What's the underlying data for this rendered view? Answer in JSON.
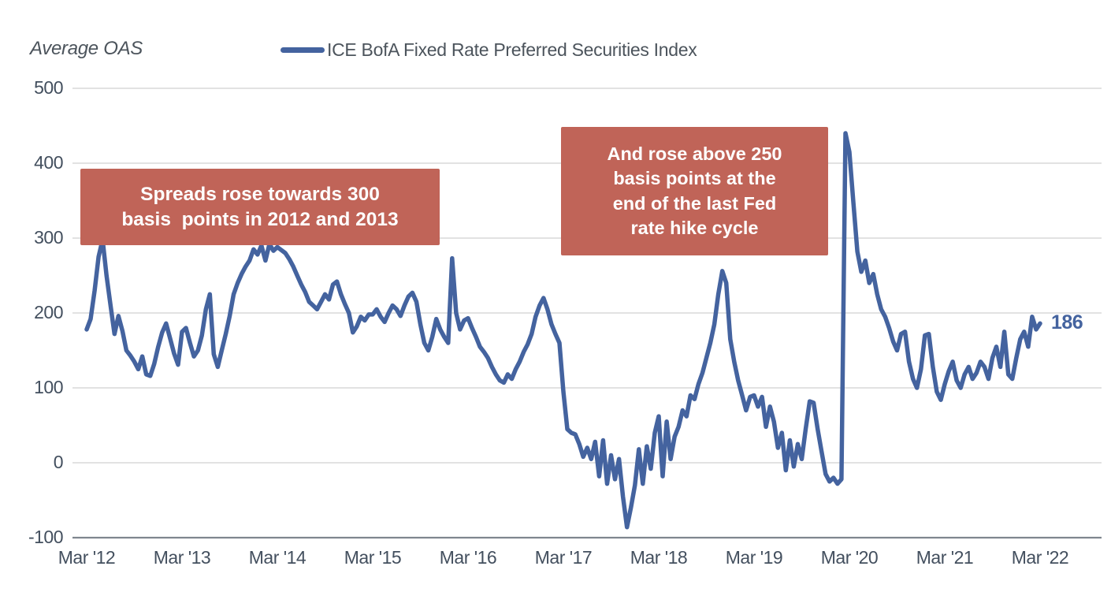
{
  "header": {
    "axis_title": "Average OAS",
    "legend_label": "ICE BofA Fixed Rate Preferred Securities Index"
  },
  "annotations": [
    {
      "text": "Spreads rose towards 300\nbasis  points in 2012 and 2013"
    },
    {
      "text": "And rose above 250\nbasis points at the\nend of the last Fed\nrate hike cycle"
    }
  ],
  "colors": {
    "accent": "#44639F",
    "annotation_bg": "#C06458",
    "grid": "#D9D9D9",
    "axis_line": "#7F868F",
    "tick_text": "#434F5E",
    "label_text": "#4C545C",
    "annotation_text": "#FFFFFF"
  },
  "chart_data": {
    "type": "line",
    "title": "Average OAS",
    "series_name": "ICE BofA Fixed Rate Preferred Securities Index",
    "legend_position": "top",
    "grid": "horizontal",
    "x_range": [
      "Mar 2012",
      "Mar 2022"
    ],
    "frequency": "semi-monthly",
    "x_ticks": [
      "Mar '12",
      "Mar '13",
      "Mar '14",
      "Mar '15",
      "Mar '16",
      "Mar '17",
      "Mar '18",
      "Mar '19",
      "Mar '20",
      "Mar '21",
      "Mar '22"
    ],
    "y_ticks": [
      500,
      400,
      300,
      200,
      100,
      0,
      -100
    ],
    "ylim": [
      -100,
      500
    ],
    "end_label": "186",
    "end_value": 186,
    "values": [
      178,
      192,
      230,
      275,
      298,
      250,
      210,
      172,
      196,
      176,
      150,
      143,
      135,
      125,
      142,
      118,
      116,
      132,
      155,
      174,
      186,
      166,
      146,
      131,
      175,
      180,
      160,
      142,
      150,
      170,
      205,
      225,
      145,
      128,
      150,
      172,
      196,
      225,
      240,
      252,
      262,
      270,
      285,
      278,
      290,
      270,
      292,
      283,
      288,
      284,
      280,
      272,
      262,
      250,
      238,
      228,
      215,
      210,
      205,
      215,
      225,
      218,
      238,
      242,
      225,
      212,
      200,
      174,
      182,
      195,
      190,
      198,
      198,
      205,
      195,
      188,
      200,
      210,
      205,
      196,
      210,
      222,
      227,
      215,
      185,
      160,
      150,
      168,
      192,
      178,
      168,
      160,
      273,
      200,
      178,
      190,
      193,
      180,
      168,
      155,
      148,
      140,
      128,
      118,
      110,
      107,
      118,
      112,
      125,
      135,
      148,
      158,
      172,
      195,
      210,
      220,
      205,
      185,
      172,
      160,
      95,
      45,
      40,
      38,
      25,
      8,
      20,
      5,
      28,
      -18,
      30,
      -28,
      10,
      -22,
      5,
      -45,
      -86,
      -60,
      -30,
      18,
      -28,
      22,
      -8,
      40,
      62,
      -18,
      55,
      5,
      35,
      48,
      70,
      62,
      90,
      85,
      105,
      120,
      140,
      160,
      185,
      225,
      256,
      240,
      165,
      135,
      110,
      90,
      70,
      88,
      90,
      75,
      88,
      48,
      75,
      55,
      20,
      40,
      -10,
      30,
      -5,
      25,
      5,
      45,
      82,
      80,
      45,
      15,
      -15,
      -25,
      -20,
      -28,
      -22,
      440,
      415,
      348,
      282,
      255,
      270,
      240,
      252,
      225,
      205,
      195,
      180,
      162,
      150,
      172,
      175,
      135,
      112,
      100,
      125,
      170,
      172,
      128,
      95,
      84,
      105,
      122,
      135,
      110,
      100,
      118,
      128,
      112,
      120,
      135,
      128,
      112,
      140,
      155,
      128,
      175,
      118,
      112,
      140,
      165,
      175,
      155,
      195,
      178,
      186
    ]
  }
}
